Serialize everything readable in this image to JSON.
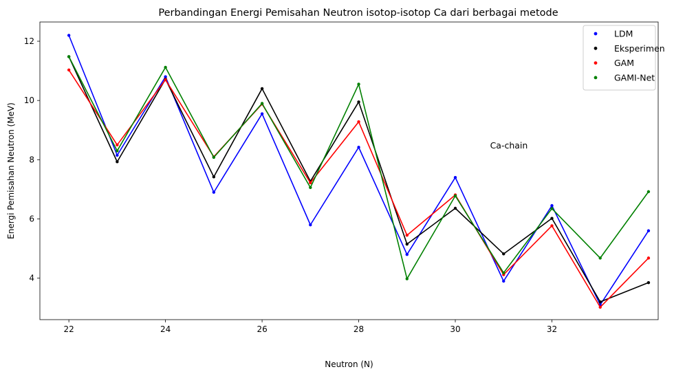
{
  "chart_data": {
    "type": "line",
    "title": "Perbandingan Energi Pemisahan Neutron isotop-isotop Ca dari berbagai metode",
    "xlabel": "Neutron (N)",
    "ylabel": "Energi Pemisahan Neutron (MeV)",
    "xlim": [
      21.4,
      34.2
    ],
    "ylim": [
      2.6,
      12.65
    ],
    "xticks": [
      22,
      24,
      26,
      28,
      30,
      32
    ],
    "yticks": [
      4,
      6,
      8,
      10,
      12
    ],
    "grid": false,
    "legend_position": "top-right",
    "annotation": "Ca-chain",
    "x": [
      22,
      23,
      24,
      25,
      26,
      27,
      28,
      29,
      30,
      31,
      32,
      33,
      34
    ],
    "series": [
      {
        "name": "LDM",
        "color": "#0000ff",
        "values": [
          12.2,
          8.15,
          10.8,
          6.9,
          9.55,
          5.8,
          8.42,
          4.8,
          7.4,
          3.9,
          6.45,
          3.1,
          5.6
        ]
      },
      {
        "name": "Eksperimen",
        "color": "#000000",
        "values": [
          11.48,
          7.93,
          10.72,
          7.42,
          10.4,
          7.27,
          9.95,
          5.15,
          6.36,
          4.82,
          6.02,
          3.2,
          3.85
        ]
      },
      {
        "name": "GAM",
        "color": "#ff0000",
        "values": [
          11.03,
          8.5,
          10.7,
          8.1,
          9.88,
          7.22,
          9.28,
          5.45,
          6.81,
          4.12,
          5.77,
          3.02,
          4.68
        ]
      },
      {
        "name": "GAMI-Net",
        "color": "#008000",
        "values": [
          11.48,
          8.3,
          11.12,
          8.08,
          9.9,
          7.06,
          10.55,
          3.98,
          6.78,
          4.18,
          6.35,
          4.68,
          6.92
        ]
      }
    ]
  }
}
